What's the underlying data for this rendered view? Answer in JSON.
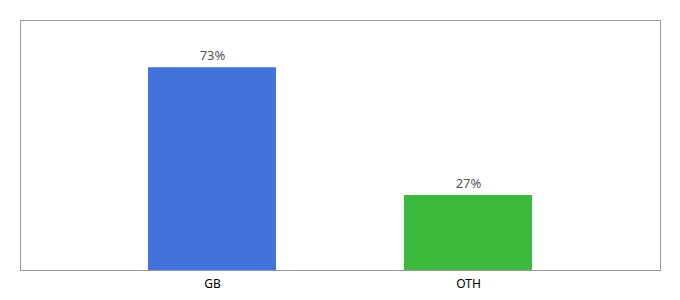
{
  "chart_data": {
    "type": "bar",
    "categories": [
      "GB",
      "OTH"
    ],
    "values": [
      73,
      27
    ],
    "value_labels": [
      "73%",
      "27%"
    ],
    "colors": [
      "#4472db",
      "#3dba3d"
    ],
    "ylim": [
      0,
      90
    ],
    "data_labels": true,
    "tick_labels": "x",
    "grid": false
  }
}
